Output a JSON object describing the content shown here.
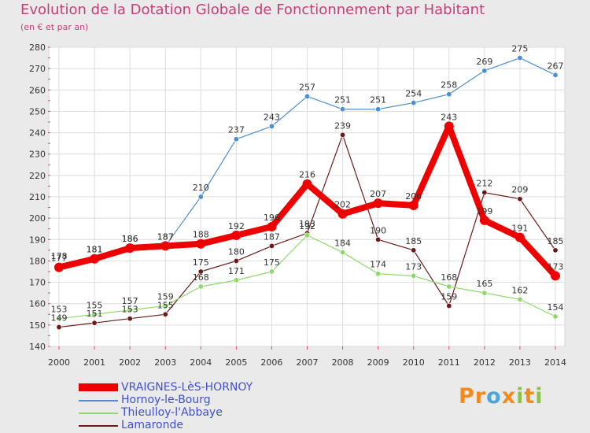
{
  "chart_data": {
    "type": "line",
    "title": "Evolution de la Dotation Globale de Fonctionnement par Habitant",
    "subtitle": "(en € et par an)",
    "xlabel": "",
    "ylabel": "",
    "x": [
      "2000",
      "2001",
      "2002",
      "2003",
      "2004",
      "2005",
      "2006",
      "2007",
      "2008",
      "2009",
      "2010",
      "2011",
      "2012",
      "2013",
      "2014"
    ],
    "ylim": [
      140,
      280
    ],
    "yticks": [
      140,
      150,
      160,
      170,
      180,
      190,
      200,
      210,
      220,
      230,
      240,
      250,
      260,
      270,
      280
    ],
    "grid": true,
    "legend_position": "bottom-left",
    "series": [
      {
        "name": "VRAIGNES-LèS-HORNOY",
        "color": "#ee0000",
        "values": [
          177,
          181,
          186,
          187,
          188,
          192,
          196,
          216,
          202,
          207,
          206,
          243,
          199,
          191,
          173
        ]
      },
      {
        "name": "Hornoy-le-Bourg",
        "color": "#4d8fce",
        "values": [
          178,
          181,
          186,
          187,
          210,
          237,
          243,
          257,
          251,
          251,
          254,
          258,
          269,
          275,
          267
        ]
      },
      {
        "name": "Thieulloy-l'Abbaye",
        "color": "#8ed86c",
        "values": [
          153,
          155,
          157,
          159,
          168,
          171,
          175,
          192,
          184,
          174,
          173,
          168,
          165,
          162,
          154
        ]
      },
      {
        "name": "Lamaronde",
        "color": "#6b1a1a",
        "values": [
          149,
          151,
          153,
          155,
          175,
          180,
          187,
          193,
          239,
          190,
          185,
          159,
          212,
          209,
          185
        ]
      }
    ]
  },
  "logo": {
    "letters": [
      {
        "ch": "P",
        "color": "#f28a1c"
      },
      {
        "ch": "r",
        "color": "#f28a1c"
      },
      {
        "ch": "o",
        "color": "#4aa7d8"
      },
      {
        "ch": "x",
        "color": "#f28a1c"
      },
      {
        "ch": "i",
        "color": "#8bc34a"
      },
      {
        "ch": "t",
        "color": "#f28a1c"
      },
      {
        "ch": "i",
        "color": "#8bc34a"
      }
    ]
  }
}
